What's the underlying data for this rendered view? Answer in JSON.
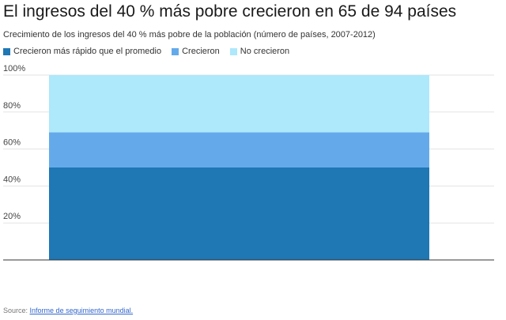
{
  "chart_data": {
    "type": "bar",
    "stacked": true,
    "title": "El ingresos del 40 % más pobre crecieron en 65 de 94 países",
    "subtitle": "Crecimiento de los ingresos del 40 % más pobre de la población (número de países, 2007-2012)",
    "categories": [
      ""
    ],
    "series": [
      {
        "name": "Crecieron más rápido que el promedio",
        "values": [
          50
        ],
        "color": "#1f77b4"
      },
      {
        "name": "Crecieron",
        "values": [
          19
        ],
        "color": "#64aaea"
      },
      {
        "name": "No crecieron",
        "values": [
          31
        ],
        "color": "#aee8fb"
      }
    ],
    "ylim": [
      0,
      100
    ],
    "yticks": [
      {
        "value": 20,
        "label": "20%"
      },
      {
        "value": 40,
        "label": "40%"
      },
      {
        "value": 60,
        "label": "60%"
      },
      {
        "value": 80,
        "label": "80%"
      },
      {
        "value": 100,
        "label": "100%"
      }
    ],
    "grid": true,
    "legend_position": "top-left"
  },
  "source": {
    "label": "Source:",
    "link_text": "Informe de seguimiento mundial."
  }
}
